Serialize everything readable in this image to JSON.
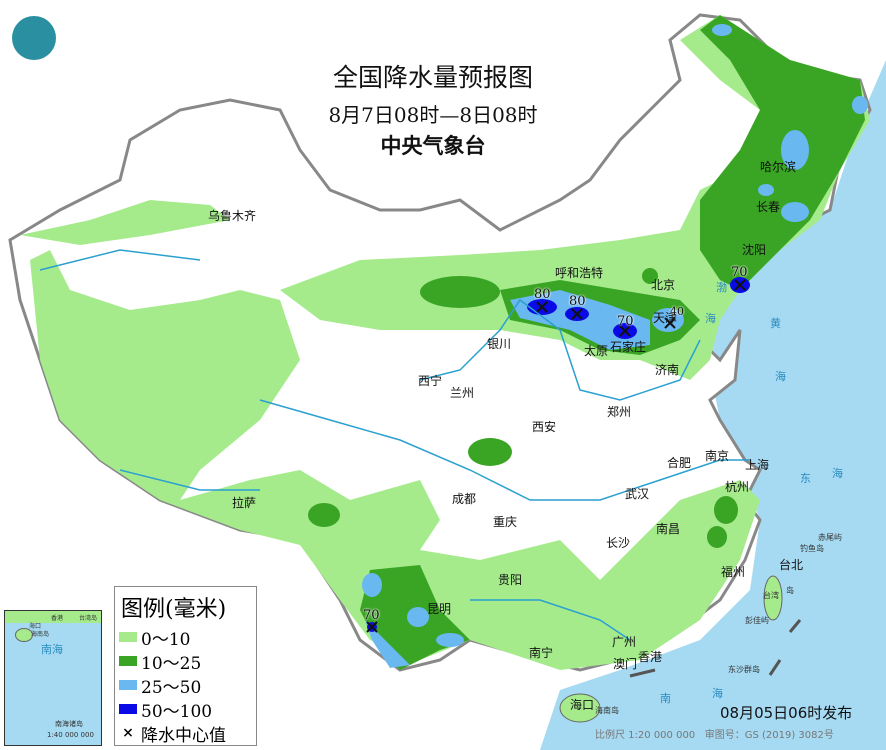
{
  "title": "全国降水量预报图",
  "period": "8月7日08时—8日08时",
  "issuer": "中央气象台",
  "logo_icon": "cma-logo",
  "legend": {
    "title": "图例(毫米)",
    "items": [
      {
        "label": "0～10",
        "color": "#a5eb8c"
      },
      {
        "label": "10～25",
        "color": "#3aa424"
      },
      {
        "label": "25～50",
        "color": "#6ab8f0"
      },
      {
        "label": "50～100",
        "color": "#0a0ae6"
      },
      {
        "label": "降水中心值",
        "icon": "x-mark"
      }
    ]
  },
  "cities": [
    "乌鲁木齐",
    "呼和浩特",
    "北京",
    "天津",
    "石家庄",
    "太原",
    "银川",
    "西宁",
    "兰州",
    "济南",
    "郑州",
    "西安",
    "合肥",
    "南京",
    "上海",
    "杭州",
    "武汉",
    "南昌",
    "长沙",
    "福州",
    "台北",
    "拉萨",
    "成都",
    "重庆",
    "贵阳",
    "昆明",
    "南宁",
    "广州",
    "香港",
    "澳门",
    "海口",
    "哈尔滨",
    "长春",
    "沈阳"
  ],
  "rain_centers": [
    "80",
    "80",
    "70",
    "40",
    "70",
    "70"
  ],
  "seas": [
    "渤",
    "海",
    "黄",
    "海",
    "东",
    "海",
    "南",
    "海",
    "台湾",
    "岛",
    "海南岛",
    "钓鱼岛",
    "赤尾屿",
    "彭佳屿",
    "东沙群岛"
  ],
  "inset": {
    "labels": [
      "南海",
      "南海诸岛",
      "海南岛",
      "海口",
      "香港",
      "台湾岛"
    ],
    "scale": "1:40 000 000"
  },
  "issued": "08月05日06时发布",
  "footer": {
    "scale": "比例尺 1:20 000 000",
    "approval": "审图号：GS (2019) 3082号"
  }
}
